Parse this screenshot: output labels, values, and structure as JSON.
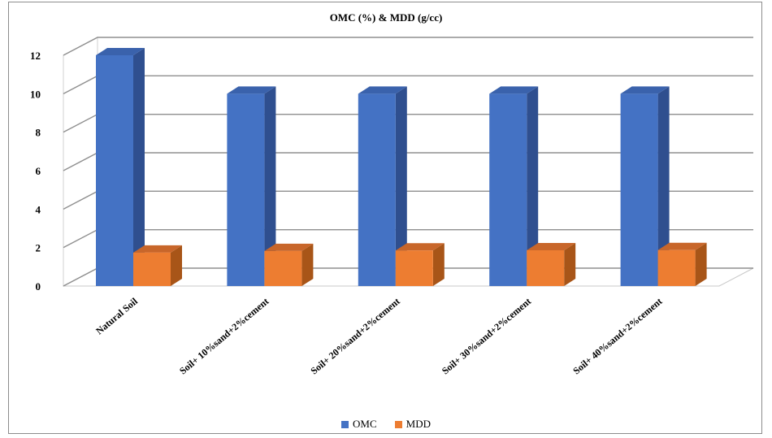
{
  "chart_data": {
    "type": "bar",
    "title": "OMC (%) & MDD (g/cc)",
    "categories": [
      "Natural Soil",
      "Soil+ 10%sand+2%cement",
      "Soil+ 20%sand+2%cement",
      "Soil+ 30%sand+2%cement",
      "Soil+ 40%sand+2%cement"
    ],
    "series": [
      {
        "name": "OMC",
        "values": [
          12,
          10,
          10,
          10,
          10
        ],
        "color": "#4472C4",
        "side_color": "#2F4F8F",
        "top_color": "#3A62AC"
      },
      {
        "name": "MDD",
        "values": [
          1.74,
          1.82,
          1.85,
          1.86,
          1.87
        ],
        "color": "#ED7D31",
        "side_color": "#A85518",
        "top_color": "#C8662A"
      }
    ],
    "yticks": [
      "0",
      "2",
      "4",
      "6",
      "8",
      "10",
      "12"
    ],
    "ylim": [
      0,
      12
    ],
    "grid": true,
    "style": "3d-column",
    "legend_position": "bottom"
  }
}
